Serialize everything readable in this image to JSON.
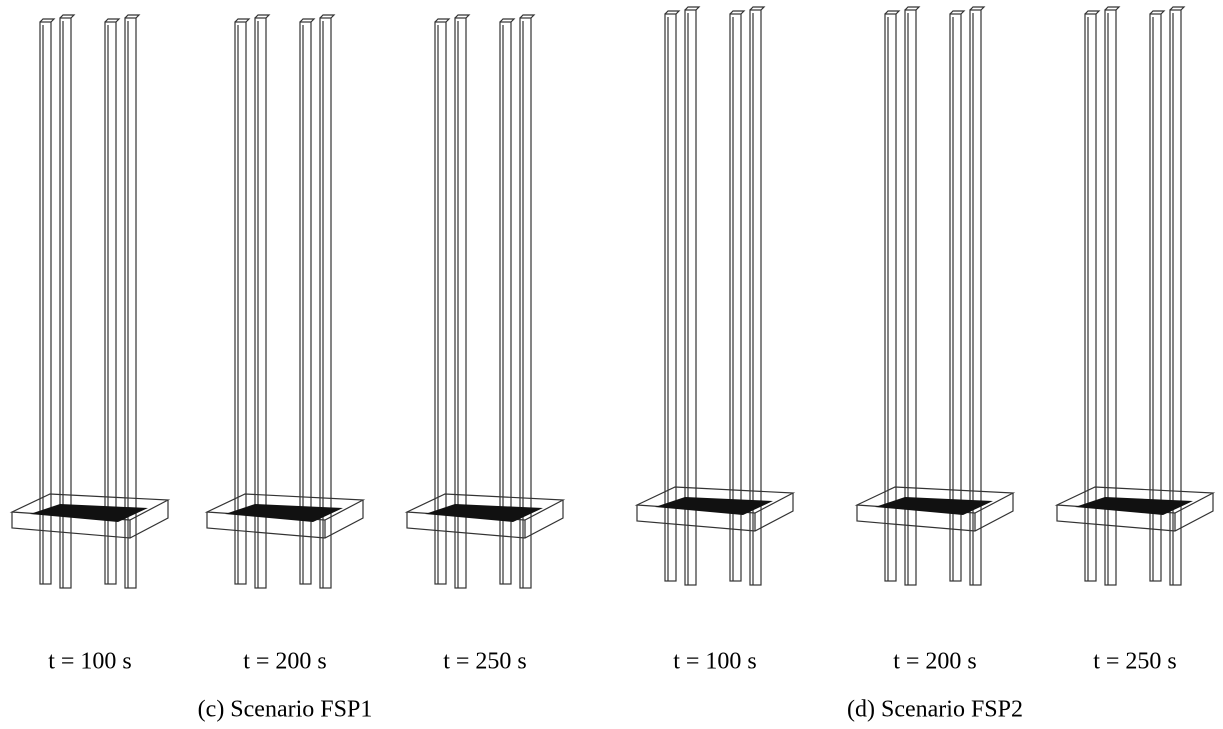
{
  "panels": [
    {
      "caption": "(c) Scenario FSP1",
      "frames": [
        {
          "label": "t = 100 s"
        },
        {
          "label": "t = 200 s"
        },
        {
          "label": "t = 250 s"
        }
      ]
    },
    {
      "caption": "(d) Scenario FSP2",
      "frames": [
        {
          "label": "t = 100 s"
        },
        {
          "label": "t = 200 s"
        },
        {
          "label": "t = 250 s"
        }
      ]
    }
  ]
}
